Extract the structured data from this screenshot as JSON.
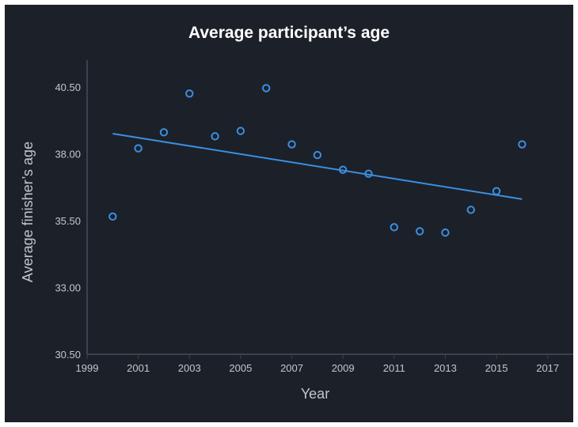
{
  "chart_data": {
    "type": "scatter",
    "title": "Average participant’s age",
    "xlabel": "Year",
    "ylabel": "Average finisher’s age",
    "xlim": [
      1999,
      2018
    ],
    "ylim": [
      30.5,
      41.5
    ],
    "xticks": [
      1999,
      2001,
      2003,
      2005,
      2007,
      2009,
      2011,
      2013,
      2015,
      2017
    ],
    "yticks": [
      "30.50",
      "33.00",
      "35.50",
      "38.00",
      "40.50"
    ],
    "grid": false,
    "series": [
      {
        "x": [
          2000,
          2001,
          2002,
          2003,
          2004,
          2005,
          2006,
          2007,
          2008,
          2009,
          2010,
          2011,
          2012,
          2013,
          2014,
          2015,
          2016
        ],
        "values": [
          35.65,
          38.2,
          38.8,
          40.25,
          38.65,
          38.85,
          40.45,
          38.35,
          37.95,
          37.4,
          37.25,
          35.25,
          35.1,
          35.05,
          35.9,
          36.6,
          38.35
        ]
      }
    ],
    "trendline": {
      "x": [
        2000,
        2016
      ],
      "y": [
        38.75,
        36.3
      ]
    },
    "colors": {
      "background": "#1c2029",
      "axis": "#3c414b",
      "text": "#c2c6cc",
      "title": "#ffffff",
      "series": "#3a8fe0"
    }
  }
}
